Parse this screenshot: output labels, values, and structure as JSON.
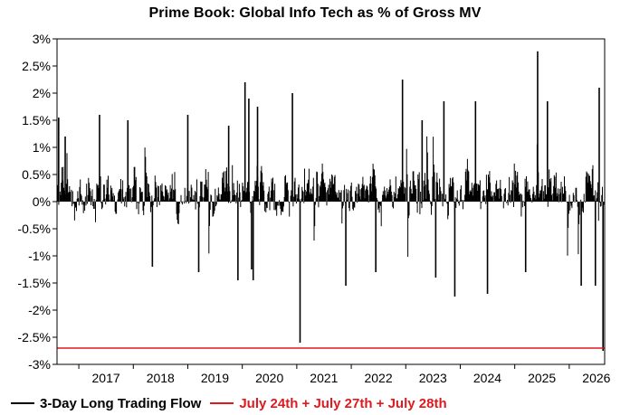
{
  "chart_data": {
    "type": "bar",
    "title": "Prime Book: Global Info Tech as % of Gross MV",
    "xlabel": "",
    "ylabel": "",
    "ylim": [
      -3,
      3
    ],
    "xlim": [
      2016.6,
      2026.65
    ],
    "y_ticks": [
      "3%",
      "2.5%",
      "2%",
      "1.5%",
      "1%",
      "0.5%",
      "0%",
      "-0.5%",
      "-1%",
      "-1.5%",
      "-2%",
      "-2.5%",
      "-3%"
    ],
    "y_tick_values": [
      3,
      2.5,
      2,
      1.5,
      1,
      0.5,
      0,
      -0.5,
      -1,
      -1.5,
      -2,
      -2.5,
      -3
    ],
    "x_ticks": [
      "2017",
      "2018",
      "2019",
      "2020",
      "2021",
      "2022",
      "2023",
      "2024",
      "2025",
      "2026"
    ],
    "x_tick_values": [
      2017,
      2018,
      2019,
      2020,
      2021,
      2022,
      2023,
      2024,
      2025,
      2026
    ],
    "grid": false,
    "legend_placement": "bottom-left",
    "series": [
      {
        "name": "3-Day Long Trading Flow",
        "color": "#000000",
        "style": "dense daily bars",
        "notable_points": [
          {
            "x": 2016.63,
            "y": 1.55
          },
          {
            "x": 2016.75,
            "y": 1.2
          },
          {
            "x": 2017.38,
            "y": 1.6
          },
          {
            "x": 2017.9,
            "y": 1.5
          },
          {
            "x": 2018.35,
            "y": -1.2
          },
          {
            "x": 2019.0,
            "y": 1.6
          },
          {
            "x": 2019.2,
            "y": -1.3
          },
          {
            "x": 2019.75,
            "y": 1.4
          },
          {
            "x": 2019.92,
            "y": -1.45
          },
          {
            "x": 2020.05,
            "y": 2.2
          },
          {
            "x": 2020.12,
            "y": 1.9
          },
          {
            "x": 2020.17,
            "y": -1.25
          },
          {
            "x": 2020.2,
            "y": -1.45
          },
          {
            "x": 2020.28,
            "y": 1.75
          },
          {
            "x": 2020.92,
            "y": 2.0
          },
          {
            "x": 2021.06,
            "y": -2.6
          },
          {
            "x": 2021.9,
            "y": -1.55
          },
          {
            "x": 2022.45,
            "y": -1.3
          },
          {
            "x": 2022.94,
            "y": 2.25
          },
          {
            "x": 2023.3,
            "y": 1.5
          },
          {
            "x": 2023.55,
            "y": -1.4
          },
          {
            "x": 2023.7,
            "y": 1.85
          },
          {
            "x": 2023.9,
            "y": -1.75
          },
          {
            "x": 2024.28,
            "y": 1.85
          },
          {
            "x": 2024.5,
            "y": -1.7
          },
          {
            "x": 2025.2,
            "y": -1.3
          },
          {
            "x": 2025.42,
            "y": 2.77
          },
          {
            "x": 2025.6,
            "y": 1.85
          },
          {
            "x": 2026.22,
            "y": -1.55
          },
          {
            "x": 2026.48,
            "y": -1.55
          },
          {
            "x": 2026.55,
            "y": 2.1
          },
          {
            "x": 2026.62,
            "y": -2.75
          }
        ]
      },
      {
        "name": "July 24th + July 27th + July 28th",
        "color": "#e0191f",
        "style": "horizontal reference line",
        "value": -2.7
      }
    ]
  }
}
